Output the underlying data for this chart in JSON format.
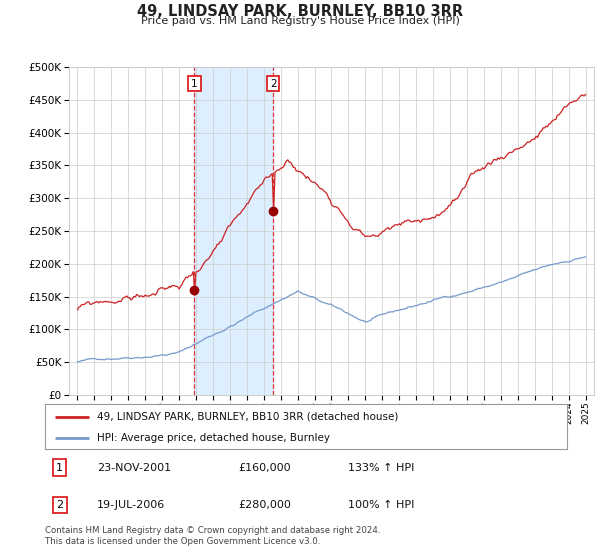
{
  "title": "49, LINDSAY PARK, BURNLEY, BB10 3RR",
  "subtitle": "Price paid vs. HM Land Registry's House Price Index (HPI)",
  "legend_line1": "49, LINDSAY PARK, BURNLEY, BB10 3RR (detached house)",
  "legend_line2": "HPI: Average price, detached house, Burnley",
  "purchase1_date": "23-NOV-2001",
  "purchase1_price": 160000,
  "purchase1_hpi": "133% ↑ HPI",
  "purchase2_date": "19-JUL-2006",
  "purchase2_price": 280000,
  "purchase2_hpi": "100% ↑ HPI",
  "footnote": "Contains HM Land Registry data © Crown copyright and database right 2024.\nThis data is licensed under the Open Government Licence v3.0.",
  "ylim": [
    0,
    500000
  ],
  "yticks": [
    0,
    50000,
    100000,
    150000,
    200000,
    250000,
    300000,
    350000,
    400000,
    450000,
    500000
  ],
  "hpi_color": "#7799cc",
  "price_color": "#cc2222",
  "dot_color": "#990000",
  "vline_color": "#dd2222",
  "shade_color": "#ddeeff",
  "grid_color": "#cccccc",
  "background_color": "#ffffff",
  "purchase1_x": 2001.9,
  "purchase2_x": 2006.55,
  "xlim_left": 1994.5,
  "xlim_right": 2025.5
}
